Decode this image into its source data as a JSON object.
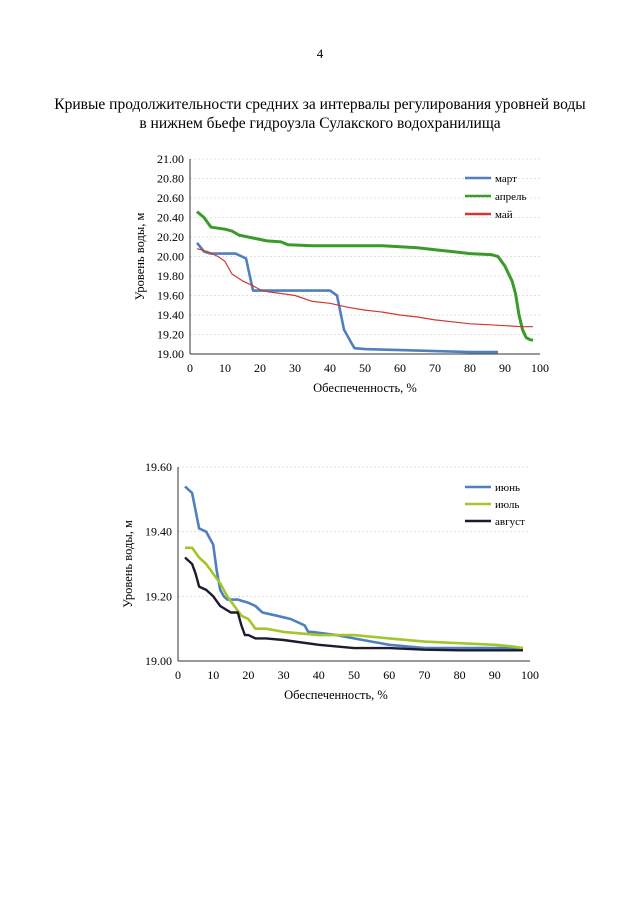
{
  "page": {
    "number": "4",
    "title_line1": "Кривые продолжительности средних за интервалы регулирования уровней воды",
    "title_line2": "в нижнем бьефе гидроузла Сулакского водохранилища"
  },
  "chart_data": [
    {
      "type": "line",
      "xlabel": "Обеспеченность, %",
      "ylabel": "Уровень воды, м",
      "xlim": [
        0,
        100
      ],
      "ylim": [
        19.0,
        21.0
      ],
      "xticks": [
        "0",
        "10",
        "20",
        "30",
        "40",
        "50",
        "60",
        "70",
        "80",
        "90",
        "100"
      ],
      "yticks": [
        "19.00",
        "19.20",
        "19.40",
        "19.60",
        "19.80",
        "20.00",
        "20.20",
        "20.40",
        "20.60",
        "20.80",
        "21.00"
      ],
      "legend_position": "top-right",
      "series": [
        {
          "name": "март",
          "color": "#4f7fbf",
          "x": [
            2,
            4,
            6,
            10,
            13,
            16,
            18,
            22,
            28,
            35,
            40,
            42,
            44,
            46,
            47,
            50,
            60,
            70,
            80,
            88
          ],
          "y": [
            20.14,
            20.05,
            20.03,
            20.03,
            20.03,
            19.98,
            19.65,
            19.65,
            19.65,
            19.65,
            19.65,
            19.6,
            19.25,
            19.12,
            19.06,
            19.05,
            19.04,
            19.03,
            19.02,
            19.02
          ]
        },
        {
          "name": "апрель",
          "color": "#3a9a2a",
          "x": [
            2,
            4,
            6,
            10,
            12,
            14,
            18,
            22,
            26,
            28,
            35,
            45,
            55,
            60,
            65,
            70,
            75,
            80,
            86,
            88,
            90,
            92,
            93,
            94,
            95,
            96,
            97,
            98
          ],
          "y": [
            20.46,
            20.4,
            20.3,
            20.28,
            20.26,
            20.22,
            20.19,
            20.16,
            20.15,
            20.12,
            20.11,
            20.11,
            20.11,
            20.1,
            20.09,
            20.07,
            20.05,
            20.03,
            20.02,
            20.0,
            19.9,
            19.75,
            19.62,
            19.4,
            19.25,
            19.17,
            19.15,
            19.14
          ]
        },
        {
          "name": "май",
          "color": "#d03a2e",
          "x": [
            2,
            5,
            8,
            10,
            12,
            15,
            18,
            20,
            22,
            26,
            30,
            35,
            40,
            45,
            50,
            55,
            60,
            65,
            70,
            75,
            80,
            85,
            90,
            95,
            98
          ],
          "y": [
            20.08,
            20.05,
            20.0,
            19.95,
            19.82,
            19.75,
            19.7,
            19.66,
            19.64,
            19.62,
            19.6,
            19.54,
            19.52,
            19.48,
            19.45,
            19.43,
            19.4,
            19.38,
            19.35,
            19.33,
            19.31,
            19.3,
            19.29,
            19.28,
            19.28
          ]
        }
      ]
    },
    {
      "type": "line",
      "xlabel": "Обеспеченность, %",
      "ylabel": "Уровень воды, м",
      "xlim": [
        0,
        100
      ],
      "ylim": [
        19.0,
        19.6
      ],
      "xticks": [
        "0",
        "10",
        "20",
        "30",
        "40",
        "50",
        "60",
        "70",
        "80",
        "90",
        "100"
      ],
      "yticks": [
        "19.00",
        "19.20",
        "19.40",
        "19.60"
      ],
      "legend_position": "top-right",
      "series": [
        {
          "name": "июнь",
          "color": "#4f7fbf",
          "x": [
            2,
            4,
            6,
            8,
            10,
            11,
            12,
            13,
            14,
            17,
            20,
            22,
            24,
            28,
            32,
            36,
            37,
            38,
            45,
            50,
            55,
            60,
            70,
            80,
            90,
            98
          ],
          "y": [
            19.54,
            19.52,
            19.41,
            19.4,
            19.36,
            19.28,
            19.22,
            19.2,
            19.19,
            19.19,
            19.18,
            19.17,
            19.15,
            19.14,
            19.13,
            19.11,
            19.09,
            19.09,
            19.08,
            19.07,
            19.06,
            19.05,
            19.04,
            19.04,
            19.04,
            19.04
          ]
        },
        {
          "name": "июль",
          "color": "#a3c62a",
          "x": [
            2,
            4,
            6,
            8,
            10,
            12,
            14,
            16,
            18,
            20,
            22,
            25,
            30,
            40,
            50,
            60,
            70,
            80,
            90,
            95,
            98
          ],
          "y": [
            19.35,
            19.35,
            19.32,
            19.3,
            19.27,
            19.24,
            19.2,
            19.17,
            19.14,
            19.13,
            19.1,
            19.1,
            19.09,
            19.08,
            19.08,
            19.07,
            19.06,
            19.055,
            19.05,
            19.045,
            19.04
          ]
        },
        {
          "name": "август",
          "color": "#1c1c2e",
          "x": [
            2,
            4,
            5,
            6,
            8,
            10,
            12,
            15,
            17,
            18,
            19,
            20,
            22,
            25,
            30,
            40,
            45,
            50,
            60,
            70,
            80,
            90,
            98
          ],
          "y": [
            19.32,
            19.3,
            19.27,
            19.23,
            19.22,
            19.2,
            19.17,
            19.15,
            19.15,
            19.11,
            19.08,
            19.08,
            19.07,
            19.07,
            19.065,
            19.05,
            19.045,
            19.04,
            19.04,
            19.035,
            19.033,
            19.033,
            19.033
          ]
        }
      ]
    }
  ]
}
